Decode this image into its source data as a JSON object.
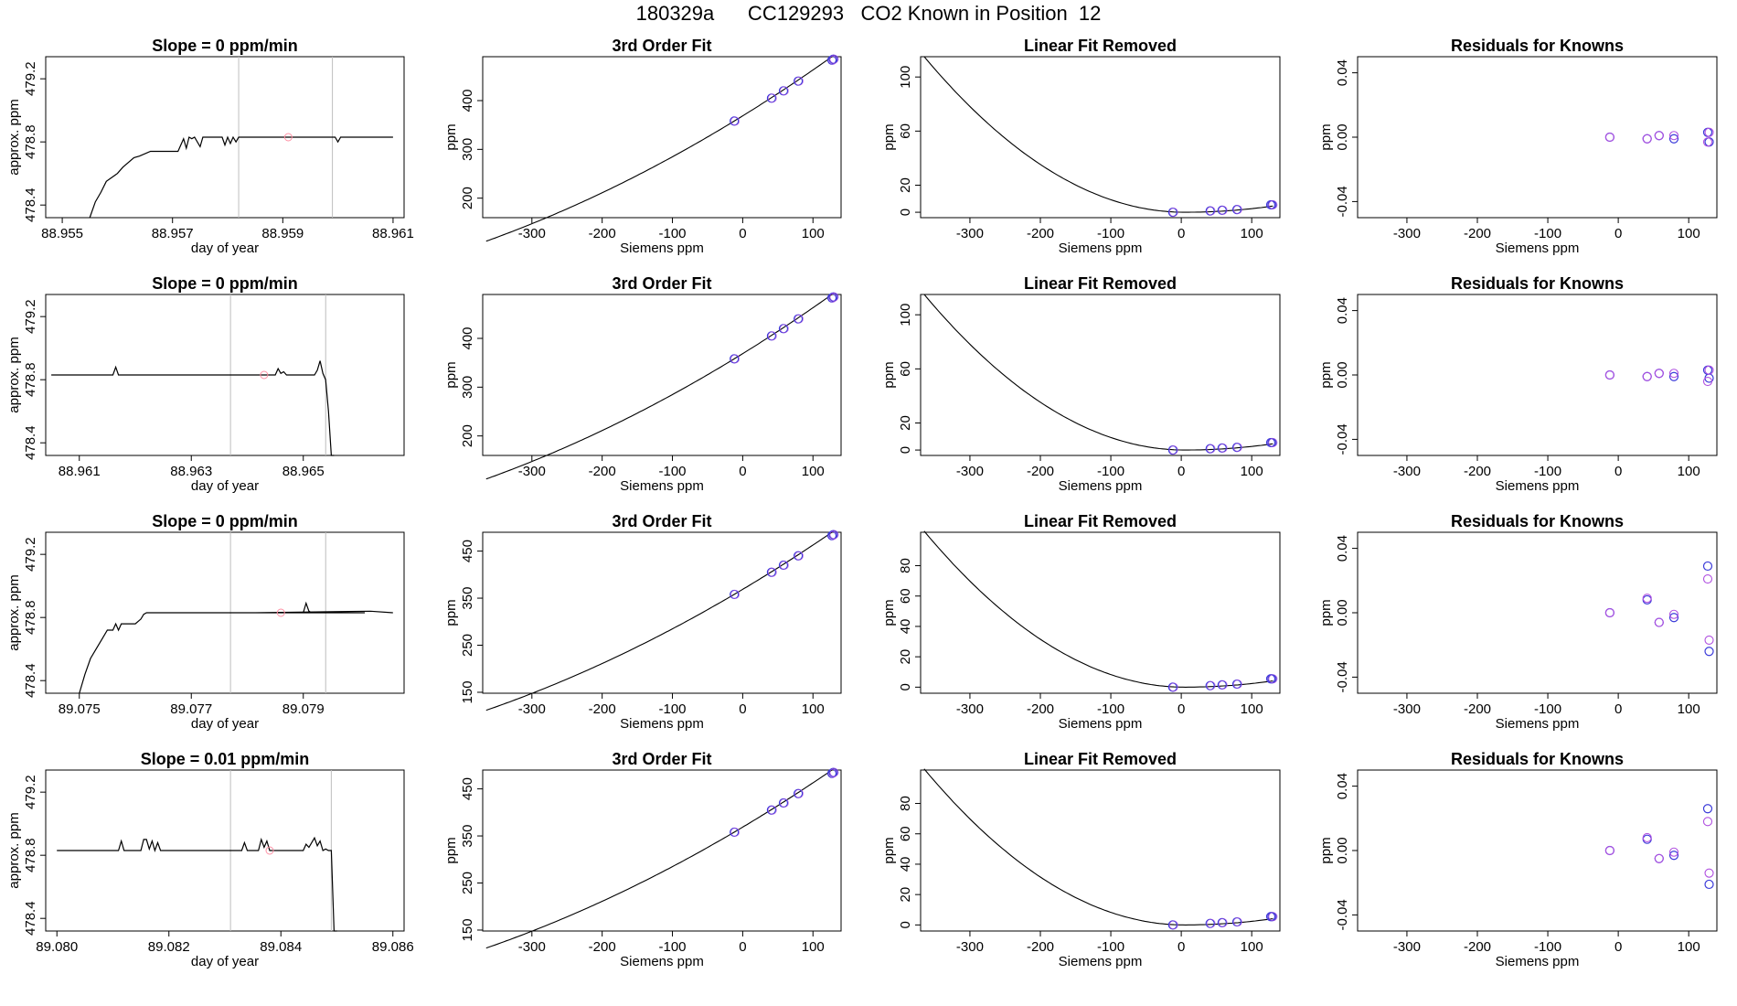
{
  "page_title": "180329a      CC129293   CO2 Known in Position  12",
  "colors": {
    "axis": "#000000",
    "line": "#000000",
    "vline": "#bebebe",
    "pink": "#ff8fa3",
    "blue": "#3b3bd9",
    "violet": "#b050e0"
  },
  "chart_data": [
    {
      "type": "line",
      "row": 1,
      "title": "Slope =  0  ppm/min",
      "xlabel": "day of year",
      "ylabel": "approx. ppm",
      "xlim": [
        88.9547,
        88.9612
      ],
      "ylim": [
        478.32,
        479.34
      ],
      "xticks": [
        88.955,
        88.957,
        88.959,
        88.961
      ],
      "xtick_labels": [
        "88.955",
        "88.957",
        "88.959",
        "88.961"
      ],
      "yticks": [
        478.4,
        478.8,
        479.2
      ],
      "ytick_labels": [
        "478.4",
        "478.8",
        "479.2"
      ],
      "vlines": [
        88.9582,
        88.9599
      ],
      "series": [
        {
          "x": [
            88.9555,
            88.9556,
            88.9557,
            88.9558,
            88.956,
            88.9561,
            88.9563,
            88.9564,
            88.9566,
            88.9568,
            88.957,
            88.9571,
            88.9572,
            88.95725,
            88.9573,
            88.95735,
            88.9574,
            88.9575,
            88.95755,
            88.9576,
            88.9578,
            88.9579,
            88.95795,
            88.958,
            88.95805,
            88.9581,
            88.95815,
            88.9582,
            88.959,
            88.95995,
            88.96,
            88.96005,
            88.961
          ],
          "y": [
            478.32,
            478.42,
            478.48,
            478.55,
            478.6,
            478.64,
            478.7,
            478.71,
            478.74,
            478.74,
            478.74,
            478.74,
            478.82,
            478.76,
            478.83,
            478.82,
            478.83,
            478.77,
            478.83,
            478.83,
            478.83,
            478.83,
            478.78,
            478.83,
            478.79,
            478.83,
            478.8,
            478.83,
            478.83,
            478.83,
            478.8,
            478.83,
            478.83
          ]
        }
      ],
      "pink_points": [
        {
          "x": 88.9591,
          "y": 478.83
        }
      ]
    },
    {
      "type": "scatter",
      "row": 1,
      "title": "3rd Order Fit",
      "xlabel": "Siemens ppm",
      "ylabel": "ppm",
      "xlim": [
        -370,
        140
      ],
      "ylim": [
        160,
        490
      ],
      "xticks": [
        -300,
        -200,
        -100,
        0,
        100
      ],
      "yticks": [
        200,
        300,
        400
      ],
      "points_x": [
        -12,
        41,
        58,
        79,
        127,
        129
      ],
      "points_y": [
        358,
        405,
        420,
        440,
        483,
        485
      ],
      "curve": "cubic"
    },
    {
      "type": "scatter",
      "row": 1,
      "title": "Linear Fit Removed",
      "xlabel": "Siemens ppm",
      "ylabel": "ppm",
      "xlim": [
        -370,
        140
      ],
      "ylim": [
        -4,
        115
      ],
      "xticks": [
        -300,
        -200,
        -100,
        0,
        100
      ],
      "yticks": [
        0,
        20,
        60,
        100
      ],
      "points_x": [
        -12,
        41,
        58,
        79,
        127,
        129
      ],
      "points_y": [
        0,
        1,
        1.5,
        2,
        5.5,
        5.5
      ],
      "curve": "parabola"
    },
    {
      "type": "scatter",
      "row": 1,
      "title": "Residuals for Knowns",
      "xlabel": "Siemens ppm",
      "ylabel": "ppm",
      "xlim": [
        -370,
        140
      ],
      "ylim": [
        -0.05,
        0.05
      ],
      "xticks": [
        -300,
        -200,
        -100,
        0,
        100
      ],
      "yticks": [
        -0.04,
        0.0,
        0.04
      ],
      "ytick_labels": [
        "-0.04",
        "0.00",
        "0.04"
      ],
      "blue_points": [
        [
          -12,
          0.0
        ],
        [
          41,
          -0.001
        ],
        [
          58,
          0.001
        ],
        [
          79,
          -0.001
        ],
        [
          127,
          0.003
        ],
        [
          129,
          -0.003
        ]
      ],
      "violet_points": [
        [
          -12,
          0.0
        ],
        [
          41,
          -0.001
        ],
        [
          58,
          0.001
        ],
        [
          79,
          0.001
        ],
        [
          127,
          -0.003
        ],
        [
          129,
          0.003
        ]
      ]
    },
    {
      "type": "line",
      "row": 2,
      "title": "Slope =  0  ppm/min",
      "xlabel": "day of year",
      "ylabel": "approx. ppm",
      "xlim": [
        88.9604,
        88.9668
      ],
      "ylim": [
        478.32,
        479.34
      ],
      "xticks": [
        88.961,
        88.963,
        88.965
      ],
      "xtick_labels": [
        "88.961",
        "88.963",
        "88.965"
      ],
      "yticks": [
        478.4,
        478.8,
        479.2
      ],
      "ytick_labels": [
        "478.4",
        "478.8",
        "479.2"
      ],
      "vlines": [
        88.9637,
        88.9654
      ],
      "series": [
        {
          "x": [
            88.9605,
            88.9616,
            88.96165,
            88.9617,
            88.9645,
            88.96455,
            88.9646,
            88.96465,
            88.9647,
            88.9652,
            88.96525,
            88.9653,
            88.96535,
            88.9654,
            88.96545,
            88.9655,
            88.96555
          ],
          "y": [
            478.83,
            478.83,
            478.88,
            478.83,
            478.83,
            478.87,
            478.84,
            478.85,
            478.83,
            478.83,
            478.86,
            478.92,
            478.84,
            478.8,
            478.6,
            478.32,
            478.32
          ]
        }
      ],
      "pink_points": [
        {
          "x": 88.9643,
          "y": 478.83
        }
      ]
    },
    {
      "type": "scatter",
      "row": 2,
      "title": "3rd Order Fit",
      "xlabel": "Siemens ppm",
      "ylabel": "ppm",
      "xlim": [
        -370,
        140
      ],
      "ylim": [
        160,
        490
      ],
      "xticks": [
        -300,
        -200,
        -100,
        0,
        100
      ],
      "yticks": [
        200,
        300,
        400
      ],
      "points_x": [
        -12,
        41,
        58,
        79,
        127,
        129
      ],
      "points_y": [
        358,
        405,
        420,
        440,
        483,
        485
      ],
      "curve": "cubic"
    },
    {
      "type": "scatter",
      "row": 2,
      "title": "Linear Fit Removed",
      "xlabel": "Siemens ppm",
      "ylabel": "ppm",
      "xlim": [
        -370,
        140
      ],
      "ylim": [
        -4,
        115
      ],
      "xticks": [
        -300,
        -200,
        -100,
        0,
        100
      ],
      "yticks": [
        0,
        20,
        60,
        100
      ],
      "points_x": [
        -12,
        41,
        58,
        79,
        127,
        129
      ],
      "points_y": [
        0,
        1,
        1.5,
        2,
        5.5,
        5.5
      ],
      "curve": "parabola"
    },
    {
      "type": "scatter",
      "row": 2,
      "title": "Residuals for Knowns",
      "xlabel": "Siemens ppm",
      "ylabel": "ppm",
      "xlim": [
        -370,
        140
      ],
      "ylim": [
        -0.05,
        0.05
      ],
      "xticks": [
        -300,
        -200,
        -100,
        0,
        100
      ],
      "yticks": [
        -0.04,
        0.0,
        0.04
      ],
      "ytick_labels": [
        "-0.04",
        "0.00",
        "0.04"
      ],
      "blue_points": [
        [
          -12,
          0.0
        ],
        [
          41,
          -0.001
        ],
        [
          58,
          0.001
        ],
        [
          79,
          -0.001
        ],
        [
          127,
          0.003
        ],
        [
          129,
          -0.002
        ]
      ],
      "violet_points": [
        [
          -12,
          0.0
        ],
        [
          41,
          -0.001
        ],
        [
          58,
          0.001
        ],
        [
          79,
          0.001
        ],
        [
          127,
          -0.004
        ],
        [
          129,
          0.003
        ]
      ]
    },
    {
      "type": "line",
      "row": 3,
      "title": "Slope =  0  ppm/min",
      "xlabel": "day of year",
      "ylabel": "approx. ppm",
      "xlim": [
        89.0744,
        89.0808
      ],
      "ylim": [
        478.32,
        479.34
      ],
      "xticks": [
        89.075,
        89.077,
        89.079
      ],
      "xtick_labels": [
        "89.075",
        "89.077",
        "89.079"
      ],
      "yticks": [
        478.4,
        478.8,
        479.2
      ],
      "ytick_labels": [
        "478.4",
        "478.8",
        "479.2"
      ],
      "vlines": [
        89.0777,
        89.0794
      ],
      "series": [
        {
          "x": [
            89.075,
            89.0751,
            89.0752,
            89.0753,
            89.0754,
            89.0755,
            89.0756,
            89.07565,
            89.0757,
            89.07575,
            89.0758,
            89.0759,
            89.076,
            89.0761,
            89.07615,
            89.0762,
            89.079,
            89.07905,
            89.0791,
            89.07915,
            89.0792,
            89.0801,
            89.07815,
            89.0802,
            89.0806
          ],
          "y": [
            478.32,
            478.44,
            478.54,
            478.6,
            478.66,
            478.72,
            478.72,
            478.76,
            478.72,
            478.76,
            478.76,
            478.76,
            478.76,
            478.79,
            478.82,
            478.83,
            478.83,
            478.89,
            478.84,
            478.83,
            478.83,
            478.83,
            478.83,
            478.84,
            478.83
          ]
        }
      ],
      "pink_points": [
        {
          "x": 89.0786,
          "y": 478.83
        }
      ]
    },
    {
      "type": "scatter",
      "row": 3,
      "title": "3rd Order Fit",
      "xlabel": "Siemens ppm",
      "ylabel": "ppm",
      "xlim": [
        -370,
        140
      ],
      "ylim": [
        148,
        490
      ],
      "xticks": [
        -300,
        -200,
        -100,
        0,
        100
      ],
      "yticks": [
        150,
        250,
        350,
        450
      ],
      "points_x": [
        -12,
        41,
        58,
        79,
        127,
        129
      ],
      "points_y": [
        358,
        405,
        420,
        440,
        483,
        485
      ],
      "curve": "cubic"
    },
    {
      "type": "scatter",
      "row": 3,
      "title": "Linear Fit Removed",
      "xlabel": "Siemens ppm",
      "ylabel": "ppm",
      "xlim": [
        -370,
        140
      ],
      "ylim": [
        -4,
        102
      ],
      "xticks": [
        -300,
        -200,
        -100,
        0,
        100
      ],
      "yticks": [
        0,
        20,
        40,
        60,
        80
      ],
      "points_x": [
        -12,
        41,
        58,
        79,
        127,
        129
      ],
      "points_y": [
        0,
        1,
        1.5,
        2,
        5.5,
        5.5
      ],
      "curve": "parabola"
    },
    {
      "type": "scatter",
      "row": 3,
      "title": "Residuals for Knowns",
      "xlabel": "Siemens ppm",
      "ylabel": "ppm",
      "xlim": [
        -370,
        140
      ],
      "ylim": [
        -0.05,
        0.05
      ],
      "xticks": [
        -300,
        -200,
        -100,
        0,
        100
      ],
      "yticks": [
        -0.04,
        0.0,
        0.04
      ],
      "ytick_labels": [
        "-0.04",
        "0.00",
        "0.04"
      ],
      "blue_points": [
        [
          -12,
          0.0
        ],
        [
          41,
          0.008
        ],
        [
          58,
          -0.006
        ],
        [
          79,
          -0.003
        ],
        [
          127,
          0.029
        ],
        [
          129,
          -0.024
        ]
      ],
      "violet_points": [
        [
          -12,
          0.0
        ],
        [
          41,
          0.009
        ],
        [
          58,
          -0.006
        ],
        [
          79,
          -0.001
        ],
        [
          127,
          0.021
        ],
        [
          129,
          -0.017
        ]
      ]
    },
    {
      "type": "line",
      "row": 4,
      "title": "Slope =  0.01  ppm/min",
      "xlabel": "day of year",
      "ylabel": "approx. ppm",
      "xlim": [
        89.0798,
        89.0862
      ],
      "ylim": [
        478.32,
        479.34
      ],
      "xticks": [
        89.08,
        89.082,
        89.084,
        89.086
      ],
      "xtick_labels": [
        "89.080",
        "89.082",
        "89.084",
        "89.086"
      ],
      "yticks": [
        478.4,
        478.8,
        479.2
      ],
      "ytick_labels": [
        "478.4",
        "478.8",
        "479.2"
      ],
      "vlines": [
        89.0831,
        89.0849
      ],
      "series": [
        {
          "x": [
            89.08,
            89.0811,
            89.08115,
            89.0812,
            89.0815,
            89.08155,
            89.0816,
            89.08165,
            89.0817,
            89.08175,
            89.0818,
            89.08185,
            89.0819,
            89.0833,
            89.08335,
            89.0834,
            89.0836,
            89.08365,
            89.0837,
            89.08375,
            89.0838,
            89.0839,
            89.0844,
            89.08445,
            89.0845,
            89.08455,
            89.0846,
            89.08465,
            89.0847,
            89.08475,
            89.0848,
            89.08485,
            89.0849,
            89.08495,
            89.085
          ],
          "y": [
            478.83,
            478.83,
            478.89,
            478.83,
            478.83,
            478.9,
            478.9,
            478.84,
            478.89,
            478.83,
            478.88,
            478.83,
            478.83,
            478.83,
            478.88,
            478.83,
            478.83,
            478.9,
            478.85,
            478.89,
            478.83,
            478.83,
            478.83,
            478.87,
            478.85,
            478.88,
            478.91,
            478.86,
            478.89,
            478.83,
            478.84,
            478.83,
            478.83,
            478.32,
            478.32
          ]
        }
      ],
      "pink_points": [
        {
          "x": 89.0838,
          "y": 478.83
        }
      ]
    },
    {
      "type": "scatter",
      "row": 4,
      "title": "3rd Order Fit",
      "xlabel": "Siemens ppm",
      "ylabel": "ppm",
      "xlim": [
        -370,
        140
      ],
      "ylim": [
        148,
        490
      ],
      "xticks": [
        -300,
        -200,
        -100,
        0,
        100
      ],
      "yticks": [
        150,
        250,
        350,
        450
      ],
      "points_x": [
        -12,
        41,
        58,
        79,
        127,
        129
      ],
      "points_y": [
        358,
        405,
        420,
        440,
        483,
        485
      ],
      "curve": "cubic"
    },
    {
      "type": "scatter",
      "row": 4,
      "title": "Linear Fit Removed",
      "xlabel": "Siemens ppm",
      "ylabel": "ppm",
      "xlim": [
        -370,
        140
      ],
      "ylim": [
        -4,
        102
      ],
      "xticks": [
        -300,
        -200,
        -100,
        0,
        100
      ],
      "yticks": [
        0,
        20,
        40,
        60,
        80
      ],
      "points_x": [
        -12,
        41,
        58,
        79,
        127,
        129
      ],
      "points_y": [
        0,
        1,
        1.5,
        2,
        5.5,
        5.5
      ],
      "curve": "parabola"
    },
    {
      "type": "scatter",
      "row": 4,
      "title": "Residuals for Knowns",
      "xlabel": "Siemens ppm",
      "ylabel": "ppm",
      "xlim": [
        -370,
        140
      ],
      "ylim": [
        -0.05,
        0.05
      ],
      "xticks": [
        -300,
        -200,
        -100,
        0,
        100
      ],
      "yticks": [
        -0.04,
        0.0,
        0.04
      ],
      "ytick_labels": [
        "-0.04",
        "0.00",
        "0.04"
      ],
      "blue_points": [
        [
          -12,
          0.0
        ],
        [
          41,
          0.007
        ],
        [
          58,
          -0.005
        ],
        [
          79,
          -0.003
        ],
        [
          127,
          0.026
        ],
        [
          129,
          -0.021
        ]
      ],
      "violet_points": [
        [
          -12,
          0.0
        ],
        [
          41,
          0.008
        ],
        [
          58,
          -0.005
        ],
        [
          79,
          -0.001
        ],
        [
          127,
          0.018
        ],
        [
          129,
          -0.014
        ]
      ]
    }
  ]
}
